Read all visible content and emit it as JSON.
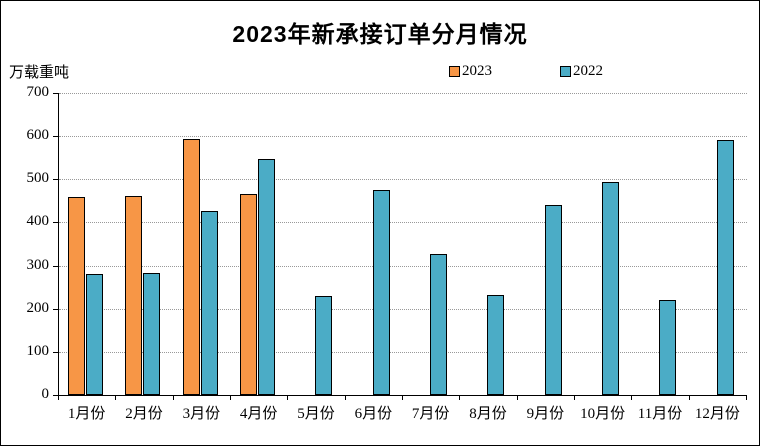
{
  "chart_data": {
    "type": "bar",
    "title": "2023年新承接订单分月情况",
    "ylabel": "万载重吨",
    "xlabel": "",
    "categories": [
      "1月份",
      "2月份",
      "3月份",
      "4月份",
      "5月份",
      "6月份",
      "7月份",
      "8月份",
      "9月份",
      "10月份",
      "11月份",
      "12月份"
    ],
    "series": [
      {
        "name": "2023",
        "color": "#F79646",
        "values": [
          460,
          462,
          593,
          466,
          null,
          null,
          null,
          null,
          null,
          null,
          null,
          null
        ]
      },
      {
        "name": "2022",
        "color": "#4BACC6",
        "values": [
          281,
          283,
          427,
          546,
          230,
          476,
          326,
          232,
          440,
          493,
          220,
          591
        ]
      }
    ],
    "ylim": [
      0,
      700
    ],
    "ytick_step": 100,
    "ytick_labels": [
      "0",
      "100",
      "200",
      "300",
      "400",
      "500",
      "600",
      "700"
    ],
    "grid": "horizontal-dotted",
    "legend_position": "top-right-above-plot"
  },
  "colors": {
    "background": "#FFFFFF",
    "axis": "#000000",
    "gridline": "#999999",
    "bar_border": "#000000",
    "text": "#000000"
  }
}
